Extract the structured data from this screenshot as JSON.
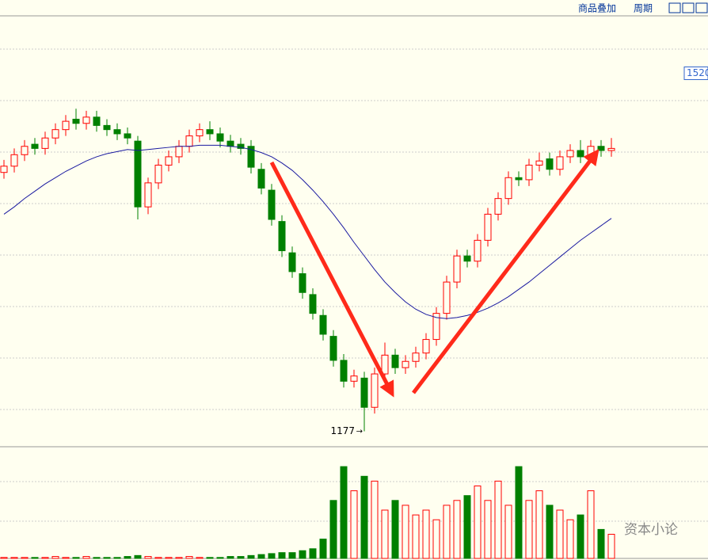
{
  "toolbar": {
    "overlay": "商品叠加",
    "period": "周期"
  },
  "watermark": "资本小论",
  "chart_data": {
    "type": "candlestick",
    "price_label": 1520,
    "ylim": [
      1163,
      1575
    ],
    "open": [
      1425,
      1431,
      1442,
      1452,
      1448,
      1458,
      1466,
      1476,
      1472,
      1478,
      1470,
      1466,
      1462,
      1455,
      1392,
      1415,
      1432,
      1440,
      1450,
      1460,
      1466,
      1462,
      1455,
      1452,
      1450,
      1428,
      1408,
      1378,
      1348,
      1328,
      1308,
      1288,
      1268,
      1245,
      1225,
      1228,
      1200,
      1232,
      1250,
      1238,
      1244,
      1252,
      1265,
      1290,
      1320,
      1345,
      1340,
      1360,
      1385,
      1400,
      1420,
      1418,
      1432,
      1438,
      1428,
      1440,
      1446,
      1440,
      1450,
      1446
    ],
    "high": [
      1437,
      1448,
      1456,
      1458,
      1464,
      1472,
      1480,
      1486,
      1484,
      1484,
      1476,
      1472,
      1468,
      1460,
      1420,
      1438,
      1446,
      1456,
      1466,
      1472,
      1474,
      1468,
      1461,
      1458,
      1456,
      1434,
      1414,
      1384,
      1354,
      1334,
      1314,
      1294,
      1274,
      1251,
      1236,
      1234,
      1238,
      1262,
      1256,
      1250,
      1258,
      1271,
      1296,
      1326,
      1351,
      1351,
      1366,
      1391,
      1406,
      1426,
      1426,
      1438,
      1444,
      1444,
      1446,
      1452,
      1456,
      1456,
      1456,
      1458
    ],
    "low": [
      1419,
      1425,
      1436,
      1442,
      1442,
      1452,
      1460,
      1466,
      1466,
      1464,
      1460,
      1456,
      1452,
      1380,
      1385,
      1409,
      1426,
      1434,
      1444,
      1454,
      1456,
      1449,
      1444,
      1442,
      1424,
      1404,
      1374,
      1344,
      1324,
      1304,
      1284,
      1264,
      1239,
      1219,
      1219,
      1177,
      1194,
      1226,
      1232,
      1232,
      1238,
      1246,
      1259,
      1284,
      1314,
      1334,
      1334,
      1354,
      1379,
      1394,
      1412,
      1412,
      1426,
      1422,
      1422,
      1434,
      1434,
      1434,
      1440,
      1440
    ],
    "close": [
      1431,
      1442,
      1450,
      1448,
      1458,
      1466,
      1474,
      1472,
      1478,
      1470,
      1466,
      1462,
      1458,
      1392,
      1415,
      1432,
      1440,
      1450,
      1460,
      1466,
      1462,
      1455,
      1450,
      1448,
      1430,
      1410,
      1380,
      1350,
      1330,
      1310,
      1290,
      1270,
      1245,
      1225,
      1230,
      1200,
      1232,
      1250,
      1238,
      1244,
      1252,
      1265,
      1290,
      1320,
      1345,
      1340,
      1360,
      1385,
      1400,
      1420,
      1418,
      1432,
      1436,
      1428,
      1440,
      1446,
      1440,
      1450,
      1446,
      1448
    ],
    "ma": [
      1385,
      1392,
      1400,
      1407,
      1414,
      1420,
      1426,
      1431,
      1436,
      1440,
      1443,
      1445,
      1447,
      1446,
      1447,
      1448,
      1449,
      1450,
      1450,
      1451,
      1451,
      1451,
      1450,
      1449,
      1447,
      1444,
      1440,
      1434,
      1427,
      1418,
      1408,
      1397,
      1385,
      1372,
      1358,
      1345,
      1332,
      1320,
      1310,
      1301,
      1294,
      1289,
      1286,
      1285,
      1286,
      1288,
      1291,
      1295,
      1300,
      1306,
      1313,
      1320,
      1328,
      1336,
      1344,
      1352,
      1360,
      1367,
      1374,
      1381
    ],
    "volume": [
      1,
      1,
      1,
      1,
      1,
      2,
      1,
      1,
      2,
      1,
      1,
      1,
      2,
      3,
      2,
      1,
      1,
      1,
      2,
      1,
      1,
      1,
      2,
      2,
      3,
      4,
      5,
      6,
      6,
      8,
      10,
      20,
      60,
      95,
      70,
      85,
      80,
      50,
      60,
      55,
      45,
      50,
      40,
      55,
      60,
      65,
      75,
      60,
      80,
      55,
      95,
      60,
      70,
      55,
      50,
      40,
      45,
      70,
      30,
      25
    ],
    "vlim": [
      0,
      100
    ]
  }
}
